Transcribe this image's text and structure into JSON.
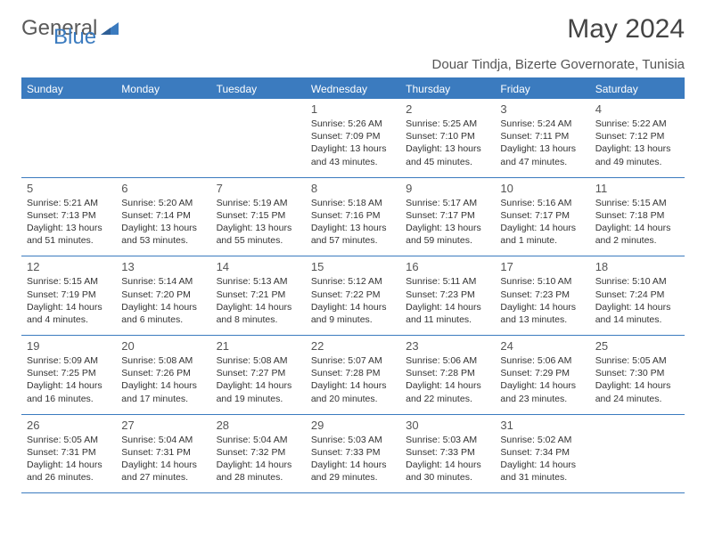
{
  "logo": {
    "word1": "General",
    "word2": "Blue"
  },
  "title": "May 2024",
  "location": "Douar Tindja, Bizerte Governorate, Tunisia",
  "colors": {
    "accent": "#3b7bbf",
    "text": "#333",
    "bg": "#ffffff",
    "header_text": "#ffffff"
  },
  "days_of_week": [
    "Sunday",
    "Monday",
    "Tuesday",
    "Wednesday",
    "Thursday",
    "Friday",
    "Saturday"
  ],
  "weeks": [
    [
      null,
      null,
      null,
      {
        "n": "1",
        "sr": "5:26 AM",
        "ss": "7:09 PM",
        "dl": "13 hours and 43 minutes."
      },
      {
        "n": "2",
        "sr": "5:25 AM",
        "ss": "7:10 PM",
        "dl": "13 hours and 45 minutes."
      },
      {
        "n": "3",
        "sr": "5:24 AM",
        "ss": "7:11 PM",
        "dl": "13 hours and 47 minutes."
      },
      {
        "n": "4",
        "sr": "5:22 AM",
        "ss": "7:12 PM",
        "dl": "13 hours and 49 minutes."
      }
    ],
    [
      {
        "n": "5",
        "sr": "5:21 AM",
        "ss": "7:13 PM",
        "dl": "13 hours and 51 minutes."
      },
      {
        "n": "6",
        "sr": "5:20 AM",
        "ss": "7:14 PM",
        "dl": "13 hours and 53 minutes."
      },
      {
        "n": "7",
        "sr": "5:19 AM",
        "ss": "7:15 PM",
        "dl": "13 hours and 55 minutes."
      },
      {
        "n": "8",
        "sr": "5:18 AM",
        "ss": "7:16 PM",
        "dl": "13 hours and 57 minutes."
      },
      {
        "n": "9",
        "sr": "5:17 AM",
        "ss": "7:17 PM",
        "dl": "13 hours and 59 minutes."
      },
      {
        "n": "10",
        "sr": "5:16 AM",
        "ss": "7:17 PM",
        "dl": "14 hours and 1 minute."
      },
      {
        "n": "11",
        "sr": "5:15 AM",
        "ss": "7:18 PM",
        "dl": "14 hours and 2 minutes."
      }
    ],
    [
      {
        "n": "12",
        "sr": "5:15 AM",
        "ss": "7:19 PM",
        "dl": "14 hours and 4 minutes."
      },
      {
        "n": "13",
        "sr": "5:14 AM",
        "ss": "7:20 PM",
        "dl": "14 hours and 6 minutes."
      },
      {
        "n": "14",
        "sr": "5:13 AM",
        "ss": "7:21 PM",
        "dl": "14 hours and 8 minutes."
      },
      {
        "n": "15",
        "sr": "5:12 AM",
        "ss": "7:22 PM",
        "dl": "14 hours and 9 minutes."
      },
      {
        "n": "16",
        "sr": "5:11 AM",
        "ss": "7:23 PM",
        "dl": "14 hours and 11 minutes."
      },
      {
        "n": "17",
        "sr": "5:10 AM",
        "ss": "7:23 PM",
        "dl": "14 hours and 13 minutes."
      },
      {
        "n": "18",
        "sr": "5:10 AM",
        "ss": "7:24 PM",
        "dl": "14 hours and 14 minutes."
      }
    ],
    [
      {
        "n": "19",
        "sr": "5:09 AM",
        "ss": "7:25 PM",
        "dl": "14 hours and 16 minutes."
      },
      {
        "n": "20",
        "sr": "5:08 AM",
        "ss": "7:26 PM",
        "dl": "14 hours and 17 minutes."
      },
      {
        "n": "21",
        "sr": "5:08 AM",
        "ss": "7:27 PM",
        "dl": "14 hours and 19 minutes."
      },
      {
        "n": "22",
        "sr": "5:07 AM",
        "ss": "7:28 PM",
        "dl": "14 hours and 20 minutes."
      },
      {
        "n": "23",
        "sr": "5:06 AM",
        "ss": "7:28 PM",
        "dl": "14 hours and 22 minutes."
      },
      {
        "n": "24",
        "sr": "5:06 AM",
        "ss": "7:29 PM",
        "dl": "14 hours and 23 minutes."
      },
      {
        "n": "25",
        "sr": "5:05 AM",
        "ss": "7:30 PM",
        "dl": "14 hours and 24 minutes."
      }
    ],
    [
      {
        "n": "26",
        "sr": "5:05 AM",
        "ss": "7:31 PM",
        "dl": "14 hours and 26 minutes."
      },
      {
        "n": "27",
        "sr": "5:04 AM",
        "ss": "7:31 PM",
        "dl": "14 hours and 27 minutes."
      },
      {
        "n": "28",
        "sr": "5:04 AM",
        "ss": "7:32 PM",
        "dl": "14 hours and 28 minutes."
      },
      {
        "n": "29",
        "sr": "5:03 AM",
        "ss": "7:33 PM",
        "dl": "14 hours and 29 minutes."
      },
      {
        "n": "30",
        "sr": "5:03 AM",
        "ss": "7:33 PM",
        "dl": "14 hours and 30 minutes."
      },
      {
        "n": "31",
        "sr": "5:02 AM",
        "ss": "7:34 PM",
        "dl": "14 hours and 31 minutes."
      },
      null
    ]
  ],
  "labels": {
    "sunrise": "Sunrise:",
    "sunset": "Sunset:",
    "daylight": "Daylight:"
  }
}
